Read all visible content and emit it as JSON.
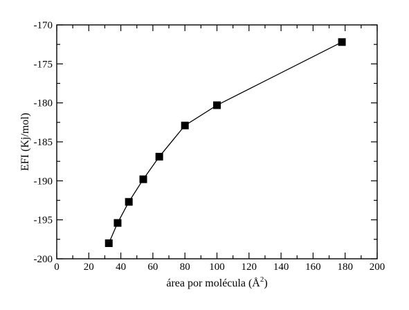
{
  "chart_data": {
    "type": "line",
    "title": "",
    "xlabel": "área por molécula (Å",
    "xlabel_superscript": "2",
    "xlabel_suffix": ")",
    "ylabel": "EFI (Kj/mol)",
    "xlim": [
      0,
      200
    ],
    "ylim": [
      -200,
      -170
    ],
    "xticks": [
      0,
      20,
      40,
      60,
      80,
      100,
      120,
      140,
      160,
      180,
      200
    ],
    "yticks": [
      -200,
      -195,
      -190,
      -185,
      -180,
      -175,
      -170
    ],
    "grid": false,
    "legend": "none",
    "marker": "square",
    "line_color": "#000000",
    "marker_color": "#000000",
    "series": [
      {
        "x": [
          32.5,
          38,
          45,
          54,
          64,
          80,
          100,
          178
        ],
        "y": [
          -198,
          -195.4,
          -192.7,
          -189.8,
          -186.9,
          -182.9,
          -180.3,
          -172.2
        ]
      }
    ]
  }
}
